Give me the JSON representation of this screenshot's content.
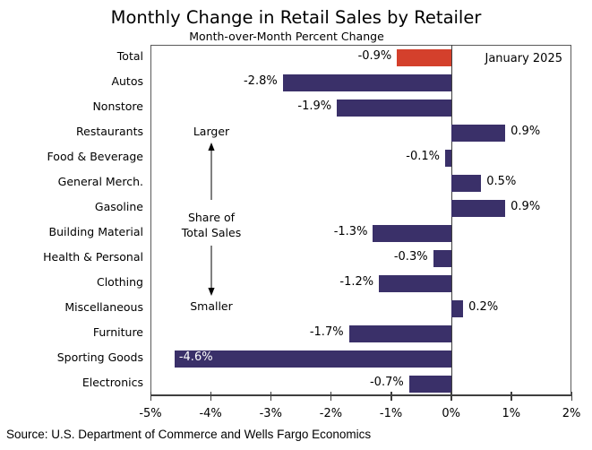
{
  "header": {
    "title": "Monthly Change in Retail Sales by Retailer",
    "subtitle": "Month-over-Month Percent Change"
  },
  "annotation": {
    "period_label": "January 2025",
    "larger": "Larger",
    "share_line1": "Share of",
    "share_line2": "Total Sales",
    "smaller": "Smaller"
  },
  "footer": {
    "source": "Source: U.S. Department of Commerce and Wells Fargo Economics"
  },
  "colors": {
    "bar": "#3A3069",
    "highlight": "#D4402C",
    "axis": "#3F3F3F",
    "inside_label": "#FFFFFF",
    "text": "#000000"
  },
  "chart_data": {
    "type": "bar",
    "orientation": "horizontal",
    "title": "Monthly Change in Retail Sales by Retailer",
    "subtitle": "Month-over-Month Percent Change",
    "categories": [
      "Total",
      "Autos",
      "Nonstore",
      "Restaurants",
      "Food & Beverage",
      "General Merch.",
      "Gasoline",
      "Building Material",
      "Health & Personal",
      "Clothing",
      "Miscellaneous",
      "Furniture",
      "Sporting Goods",
      "Electronics"
    ],
    "values": [
      -0.9,
      -2.8,
      -1.9,
      0.9,
      -0.1,
      0.5,
      0.9,
      -1.3,
      -0.3,
      -1.2,
      0.2,
      -1.7,
      -4.6,
      -0.7
    ],
    "value_labels": [
      "-0.9%",
      "-2.8%",
      "-1.9%",
      "0.9%",
      "-0.1%",
      "0.5%",
      "0.9%",
      "-1.3%",
      "-0.3%",
      "-1.2%",
      "0.2%",
      "-1.7%",
      "-4.6%",
      "-0.7%"
    ],
    "highlight_index": 0,
    "inside_label_indices": [
      12
    ],
    "xlabel": "",
    "ylabel": "",
    "xlim": [
      -5,
      2
    ],
    "xticks": [
      -5,
      -4,
      -3,
      -2,
      -1,
      0,
      1,
      2
    ],
    "xtick_labels": [
      "-5%",
      "-4%",
      "-3%",
      "-2%",
      "-1%",
      "0%",
      "1%",
      "2%"
    ],
    "grid": false,
    "legend_position": "top-right-inside",
    "legend_text": "January 2025",
    "sorted_by": "share of total sales, descending"
  }
}
